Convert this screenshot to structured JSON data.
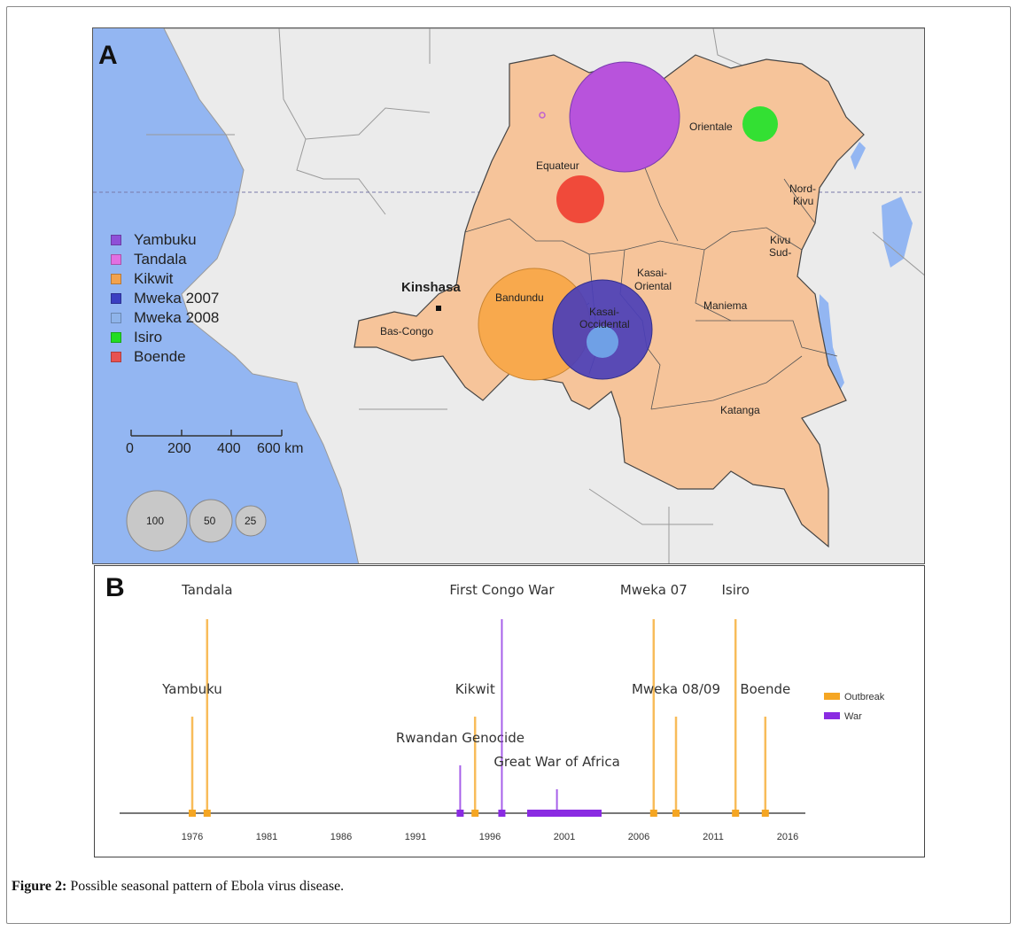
{
  "panel_a": {
    "letter": "A",
    "legend": [
      {
        "label": "Yambuku",
        "color": "#8f50d8"
      },
      {
        "label": "Tandala",
        "color": "#e26fe2"
      },
      {
        "label": "Kikwit",
        "color": "#f2a24e"
      },
      {
        "label": "Mweka 2007",
        "color": "#3b3fc2"
      },
      {
        "label": "Mweka 2008",
        "color": "#8fb4ea"
      },
      {
        "label": "Isiro",
        "color": "#22dd22"
      },
      {
        "label": "Boende",
        "color": "#e85252"
      }
    ],
    "scale": {
      "ticks": [
        "0",
        "200",
        "400",
        "600 km"
      ]
    },
    "size_key": [
      "100",
      "50",
      "25"
    ],
    "places": {
      "kinshasa": "Kinshasa",
      "bas_congo": "Bas-Congo",
      "bandundu": "Bandundu",
      "equateur": "Equateur",
      "orientale": "Orientale",
      "nord_kivu": [
        "Nord-",
        "Kivu"
      ],
      "sud_kivu": [
        "Kivu",
        "Sud-"
      ],
      "kasai_oriental": [
        "Kasai-",
        "Oriental"
      ],
      "kasai_occidental": [
        "Kasai-",
        "Occidental"
      ],
      "maniema": "Maniema",
      "katanga": "Katanga"
    },
    "colors": {
      "sea": "#93b6f2",
      "drc": "#f6c49a",
      "land": "#ebebeb",
      "border": "#777777"
    }
  },
  "panel_b": {
    "letter": "B",
    "axis_ticks": [
      "1976",
      "1981",
      "1986",
      "1991",
      "1996",
      "2001",
      "2006",
      "2011",
      "2016"
    ],
    "events": [
      {
        "label": "Tandala",
        "type": "Outbreak",
        "year": 1977,
        "level": "tall"
      },
      {
        "label": "Yambuku",
        "type": "Outbreak",
        "year": 1976,
        "level": "medium"
      },
      {
        "label": "Kikwit",
        "type": "Outbreak",
        "year": 1995,
        "level": "medium"
      },
      {
        "label": "Rwandan Genocide",
        "type": "War",
        "year": 1994,
        "level": "short"
      },
      {
        "label": "First Congo War",
        "type": "War",
        "year": 1996.8,
        "level": "tall"
      },
      {
        "label": "Great War of Africa",
        "type": "War",
        "year": 2000.5,
        "level": "low"
      },
      {
        "label": "Mweka 07",
        "type": "Outbreak",
        "year": 2007,
        "level": "tall"
      },
      {
        "label": "Mweka 08/09",
        "type": "Outbreak",
        "year": 2008.5,
        "level": "medium"
      },
      {
        "label": "Isiro",
        "type": "Outbreak",
        "year": 2012.5,
        "level": "tall"
      },
      {
        "label": "Boende",
        "type": "Outbreak",
        "year": 2014.5,
        "level": "medium"
      }
    ],
    "legend": [
      {
        "label": "Outbreak",
        "color": "#f5a623"
      },
      {
        "label": "War",
        "color": "#8a2be2"
      }
    ]
  },
  "caption": {
    "label": "Figure 2:",
    "text": " Possible seasonal pattern of Ebola virus disease."
  }
}
